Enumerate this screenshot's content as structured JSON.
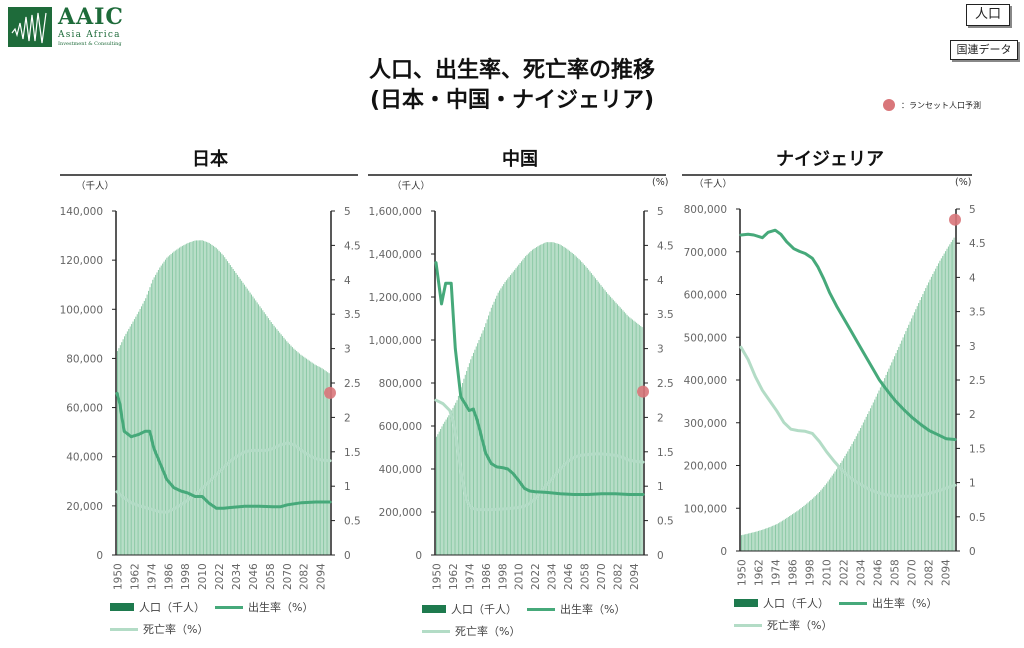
{
  "header": {
    "logo_main": "AAIC",
    "logo_sub1": "Asia Africa",
    "logo_sub2": "Investment & Consulting",
    "tag_population": "人口",
    "tag_source": "国連データ",
    "lancet_legend": "：ランセット人口予測",
    "title_line1": "人口、出生率、死亡率の推移",
    "title_line2": "(日本・中国・ナイジェリア)"
  },
  "colors": {
    "brand": "#1e6b3a",
    "population_bar": "#8cc9a6",
    "birth_rate": "#46a97a",
    "death_rate": "#b3dcc6",
    "lancet_dot": "#d9767a"
  },
  "legend": {
    "population": "人口（千人）",
    "birth_rate": "出生率（%）",
    "death_rate": "死亡率（%）"
  },
  "chart_data": [
    {
      "type": "bar",
      "title": "日本",
      "ylabel_left": "（千人）",
      "ylabel_right": "",
      "ylim_left": [
        0,
        140000
      ],
      "ylim_right": [
        0,
        5
      ],
      "yticks_left": [
        "0",
        "20,000",
        "40,000",
        "60,000",
        "80,000",
        "100,000",
        "120,000",
        "140,000"
      ],
      "yticks_right": [
        "0",
        "0.5",
        "1",
        "1.5",
        "2",
        "2.5",
        "3",
        "3.5",
        "4",
        "4.5",
        "5"
      ],
      "xticks": [
        "1950",
        "1962",
        "1974",
        "1986",
        "1998",
        "2010",
        "2022",
        "2034",
        "2046",
        "2058",
        "2070",
        "2082",
        "2094"
      ],
      "xrange": [
        1950,
        2100
      ],
      "population_keyframes": [
        [
          1950,
          83000
        ],
        [
          1955,
          89000
        ],
        [
          1960,
          94000
        ],
        [
          1965,
          99000
        ],
        [
          1970,
          104500
        ],
        [
          1975,
          112000
        ],
        [
          1980,
          117000
        ],
        [
          1985,
          121000
        ],
        [
          1990,
          123500
        ],
        [
          1995,
          125500
        ],
        [
          2000,
          127000
        ],
        [
          2005,
          128000
        ],
        [
          2010,
          128100
        ],
        [
          2015,
          127000
        ],
        [
          2020,
          125000
        ],
        [
          2025,
          122000
        ],
        [
          2030,
          118000
        ],
        [
          2035,
          114000
        ],
        [
          2040,
          110000
        ],
        [
          2045,
          106000
        ],
        [
          2050,
          102000
        ],
        [
          2055,
          98000
        ],
        [
          2060,
          94000
        ],
        [
          2065,
          90500
        ],
        [
          2070,
          87000
        ],
        [
          2075,
          84000
        ],
        [
          2080,
          81500
        ],
        [
          2085,
          79500
        ],
        [
          2090,
          77500
        ],
        [
          2095,
          76000
        ],
        [
          2100,
          74000
        ]
      ],
      "birth_rate": [
        [
          1950,
          2.35
        ],
        [
          1952,
          2.2
        ],
        [
          1955,
          1.8
        ],
        [
          1960,
          1.72
        ],
        [
          1965,
          1.75
        ],
        [
          1970,
          1.8
        ],
        [
          1973,
          1.8
        ],
        [
          1976,
          1.55
        ],
        [
          1980,
          1.35
        ],
        [
          1985,
          1.1
        ],
        [
          1990,
          0.98
        ],
        [
          1995,
          0.93
        ],
        [
          2000,
          0.9
        ],
        [
          2005,
          0.85
        ],
        [
          2010,
          0.85
        ],
        [
          2015,
          0.75
        ],
        [
          2020,
          0.68
        ],
        [
          2025,
          0.68
        ],
        [
          2030,
          0.69
        ],
        [
          2040,
          0.71
        ],
        [
          2050,
          0.71
        ],
        [
          2060,
          0.7
        ],
        [
          2065,
          0.7
        ],
        [
          2070,
          0.73
        ],
        [
          2080,
          0.76
        ],
        [
          2090,
          0.77
        ],
        [
          2100,
          0.77
        ]
      ],
      "death_rate": [
        [
          1950,
          0.92
        ],
        [
          1955,
          0.83
        ],
        [
          1960,
          0.76
        ],
        [
          1965,
          0.72
        ],
        [
          1970,
          0.69
        ],
        [
          1975,
          0.66
        ],
        [
          1980,
          0.63
        ],
        [
          1985,
          0.62
        ],
        [
          1990,
          0.67
        ],
        [
          1995,
          0.73
        ],
        [
          2000,
          0.8
        ],
        [
          2005,
          0.88
        ],
        [
          2010,
          0.97
        ],
        [
          2015,
          1.07
        ],
        [
          2020,
          1.17
        ],
        [
          2025,
          1.27
        ],
        [
          2030,
          1.37
        ],
        [
          2035,
          1.44
        ],
        [
          2040,
          1.5
        ],
        [
          2045,
          1.52
        ],
        [
          2050,
          1.52
        ],
        [
          2055,
          1.52
        ],
        [
          2060,
          1.55
        ],
        [
          2065,
          1.6
        ],
        [
          2070,
          1.63
        ],
        [
          2075,
          1.6
        ],
        [
          2080,
          1.52
        ],
        [
          2085,
          1.45
        ],
        [
          2090,
          1.4
        ],
        [
          2095,
          1.38
        ],
        [
          2100,
          1.37
        ]
      ],
      "lancet_projection": [
        2100,
        66000
      ]
    },
    {
      "type": "bar",
      "title": "中国",
      "ylabel_left": "（千人）",
      "ylabel_right": "(%)",
      "ylim_left": [
        0,
        1600000
      ],
      "ylim_right": [
        0,
        5
      ],
      "yticks_left": [
        "0",
        "200,000",
        "400,000",
        "600,000",
        "800,000",
        "1,000,000",
        "1,200,000",
        "1,400,000",
        "1,600,000"
      ],
      "yticks_right": [
        "0",
        "0.5",
        "1",
        "1.5",
        "2",
        "2.5",
        "3",
        "3.5",
        "4",
        "4.5",
        "5"
      ],
      "xticks": [
        "1950",
        "1962",
        "1974",
        "1986",
        "1998",
        "2010",
        "2022",
        "2034",
        "2046",
        "2058",
        "2070",
        "2082",
        "2094"
      ],
      "xrange": [
        1950,
        2100
      ],
      "population_keyframes": [
        [
          1950,
          550000
        ],
        [
          1955,
          610000
        ],
        [
          1960,
          660000
        ],
        [
          1965,
          720000
        ],
        [
          1970,
          820000
        ],
        [
          1975,
          910000
        ],
        [
          1980,
          985000
        ],
        [
          1985,
          1060000
        ],
        [
          1990,
          1150000
        ],
        [
          1995,
          1220000
        ],
        [
          2000,
          1270000
        ],
        [
          2005,
          1310000
        ],
        [
          2010,
          1350000
        ],
        [
          2015,
          1390000
        ],
        [
          2020,
          1420000
        ],
        [
          2025,
          1440000
        ],
        [
          2030,
          1455000
        ],
        [
          2035,
          1455000
        ],
        [
          2040,
          1445000
        ],
        [
          2045,
          1425000
        ],
        [
          2050,
          1400000
        ],
        [
          2055,
          1370000
        ],
        [
          2060,
          1335000
        ],
        [
          2065,
          1295000
        ],
        [
          2070,
          1255000
        ],
        [
          2075,
          1215000
        ],
        [
          2080,
          1180000
        ],
        [
          2085,
          1145000
        ],
        [
          2090,
          1110000
        ],
        [
          2095,
          1085000
        ],
        [
          2100,
          1060000
        ]
      ],
      "birth_rate": [
        [
          1950,
          4.25
        ],
        [
          1954,
          3.65
        ],
        [
          1957,
          3.95
        ],
        [
          1961,
          3.95
        ],
        [
          1964,
          3.0
        ],
        [
          1968,
          2.3
        ],
        [
          1971,
          2.2
        ],
        [
          1974,
          2.1
        ],
        [
          1977,
          2.12
        ],
        [
          1980,
          1.95
        ],
        [
          1983,
          1.72
        ],
        [
          1986,
          1.48
        ],
        [
          1990,
          1.33
        ],
        [
          1994,
          1.28
        ],
        [
          1998,
          1.27
        ],
        [
          2002,
          1.25
        ],
        [
          2006,
          1.18
        ],
        [
          2010,
          1.08
        ],
        [
          2014,
          0.97
        ],
        [
          2018,
          0.93
        ],
        [
          2022,
          0.92
        ],
        [
          2030,
          0.91
        ],
        [
          2040,
          0.89
        ],
        [
          2050,
          0.88
        ],
        [
          2060,
          0.88
        ],
        [
          2070,
          0.89
        ],
        [
          2080,
          0.89
        ],
        [
          2090,
          0.88
        ],
        [
          2100,
          0.88
        ]
      ],
      "death_rate": [
        [
          1950,
          2.25
        ],
        [
          1955,
          2.2
        ],
        [
          1960,
          2.1
        ],
        [
          1963,
          1.9
        ],
        [
          1966,
          1.5
        ],
        [
          1969,
          1.1
        ],
        [
          1972,
          0.8
        ],
        [
          1976,
          0.68
        ],
        [
          1980,
          0.66
        ],
        [
          1990,
          0.66
        ],
        [
          2000,
          0.67
        ],
        [
          2010,
          0.69
        ],
        [
          2014,
          0.71
        ],
        [
          2018,
          0.75
        ],
        [
          2022,
          0.82
        ],
        [
          2026,
          0.92
        ],
        [
          2030,
          1.02
        ],
        [
          2035,
          1.13
        ],
        [
          2040,
          1.25
        ],
        [
          2045,
          1.35
        ],
        [
          2050,
          1.42
        ],
        [
          2055,
          1.45
        ],
        [
          2060,
          1.46
        ],
        [
          2065,
          1.47
        ],
        [
          2070,
          1.47
        ],
        [
          2075,
          1.46
        ],
        [
          2080,
          1.45
        ],
        [
          2085,
          1.42
        ],
        [
          2090,
          1.38
        ],
        [
          2095,
          1.36
        ],
        [
          2100,
          1.35
        ]
      ],
      "lancet_projection": [
        2100,
        760000
      ]
    },
    {
      "type": "bar",
      "title": "ナイジェリア",
      "ylabel_left": "（千人）",
      "ylabel_right": "(%)",
      "ylim_left": [
        0,
        800000
      ],
      "ylim_right": [
        0,
        5
      ],
      "yticks_left": [
        "0",
        "100,000",
        "200,000",
        "300,000",
        "400,000",
        "500,000",
        "600,000",
        "700,000",
        "800,000"
      ],
      "yticks_right": [
        "0",
        "0.5",
        "1",
        "1.5",
        "2",
        "2.5",
        "3",
        "3.5",
        "4",
        "4.5",
        "5"
      ],
      "xticks": [
        "1950",
        "1962",
        "1974",
        "1986",
        "1998",
        "2010",
        "2022",
        "2034",
        "2046",
        "2058",
        "2070",
        "2082",
        "2094"
      ],
      "xrange": [
        1950,
        2100
      ],
      "population_keyframes": [
        [
          1950,
          37000
        ],
        [
          1955,
          41000
        ],
        [
          1960,
          45000
        ],
        [
          1965,
          50000
        ],
        [
          1970,
          56000
        ],
        [
          1975,
          63000
        ],
        [
          1980,
          73000
        ],
        [
          1985,
          84000
        ],
        [
          1990,
          95000
        ],
        [
          1995,
          108000
        ],
        [
          2000,
          122000
        ],
        [
          2005,
          138000
        ],
        [
          2010,
          158000
        ],
        [
          2015,
          181000
        ],
        [
          2020,
          206000
        ],
        [
          2025,
          233000
        ],
        [
          2030,
          262000
        ],
        [
          2035,
          294000
        ],
        [
          2040,
          327000
        ],
        [
          2045,
          361000
        ],
        [
          2050,
          397000
        ],
        [
          2055,
          434000
        ],
        [
          2060,
          470000
        ],
        [
          2065,
          507000
        ],
        [
          2070,
          544000
        ],
        [
          2075,
          580000
        ],
        [
          2080,
          615000
        ],
        [
          2085,
          648000
        ],
        [
          2090,
          679000
        ],
        [
          2095,
          707000
        ],
        [
          2100,
          733000
        ]
      ],
      "birth_rate": [
        [
          1950,
          4.62
        ],
        [
          1955,
          4.63
        ],
        [
          1959,
          4.62
        ],
        [
          1965,
          4.58
        ],
        [
          1969,
          4.66
        ],
        [
          1974,
          4.69
        ],
        [
          1978,
          4.63
        ],
        [
          1982,
          4.52
        ],
        [
          1987,
          4.42
        ],
        [
          1991,
          4.38
        ],
        [
          1995,
          4.35
        ],
        [
          2000,
          4.28
        ],
        [
          2004,
          4.15
        ],
        [
          2008,
          3.98
        ],
        [
          2012,
          3.78
        ],
        [
          2017,
          3.58
        ],
        [
          2022,
          3.4
        ],
        [
          2027,
          3.22
        ],
        [
          2032,
          3.04
        ],
        [
          2037,
          2.86
        ],
        [
          2042,
          2.68
        ],
        [
          2047,
          2.5
        ],
        [
          2052,
          2.36
        ],
        [
          2058,
          2.2
        ],
        [
          2064,
          2.07
        ],
        [
          2070,
          1.95
        ],
        [
          2076,
          1.85
        ],
        [
          2082,
          1.76
        ],
        [
          2088,
          1.7
        ],
        [
          2094,
          1.64
        ],
        [
          2100,
          1.63
        ]
      ],
      "death_rate": [
        [
          1950,
          2.98
        ],
        [
          1955,
          2.8
        ],
        [
          1960,
          2.55
        ],
        [
          1965,
          2.35
        ],
        [
          1970,
          2.2
        ],
        [
          1975,
          2.05
        ],
        [
          1980,
          1.88
        ],
        [
          1985,
          1.78
        ],
        [
          1990,
          1.76
        ],
        [
          1995,
          1.75
        ],
        [
          2000,
          1.72
        ],
        [
          2005,
          1.6
        ],
        [
          2010,
          1.45
        ],
        [
          2015,
          1.32
        ],
        [
          2020,
          1.2
        ],
        [
          2025,
          1.1
        ],
        [
          2030,
          1.02
        ],
        [
          2035,
          0.96
        ],
        [
          2040,
          0.9
        ],
        [
          2045,
          0.86
        ],
        [
          2050,
          0.83
        ],
        [
          2055,
          0.81
        ],
        [
          2060,
          0.8
        ],
        [
          2065,
          0.8
        ],
        [
          2070,
          0.8
        ],
        [
          2075,
          0.81
        ],
        [
          2080,
          0.83
        ],
        [
          2085,
          0.86
        ],
        [
          2090,
          0.89
        ],
        [
          2095,
          0.93
        ],
        [
          2100,
          0.96
        ]
      ],
      "lancet_projection": [
        2100,
        775000
      ]
    }
  ]
}
